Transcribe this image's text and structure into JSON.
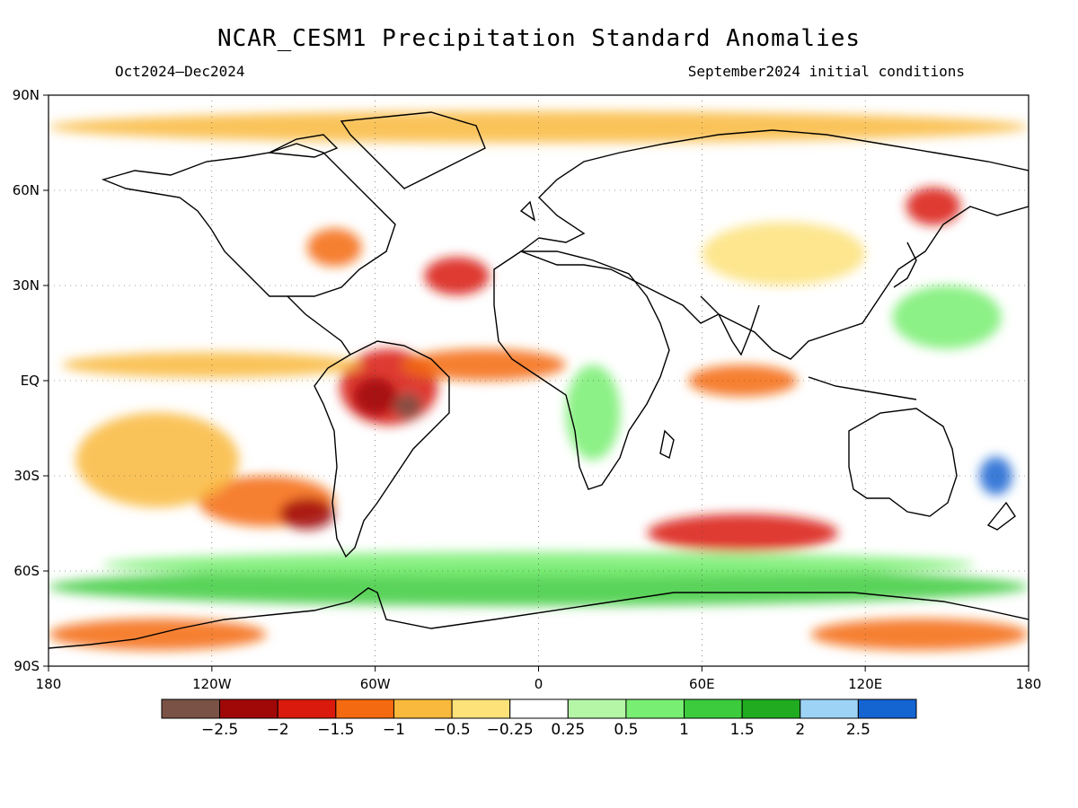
{
  "title": "NCAR_CESM1 Precipitation Standard Anomalies",
  "period": "Oct2024–Dec2024",
  "init": "September2024 initial conditions",
  "lat_ticks": [
    {
      "value": 90,
      "label": "90N"
    },
    {
      "value": 60,
      "label": "60N"
    },
    {
      "value": 30,
      "label": "30N"
    },
    {
      "value": 0,
      "label": "EQ"
    },
    {
      "value": -30,
      "label": "30S"
    },
    {
      "value": -60,
      "label": "60S"
    },
    {
      "value": -90,
      "label": "90S"
    }
  ],
  "lon_ticks": [
    {
      "value": -180,
      "label": "180"
    },
    {
      "value": -120,
      "label": "120W"
    },
    {
      "value": -60,
      "label": "60W"
    },
    {
      "value": 0,
      "label": "0"
    },
    {
      "value": 60,
      "label": "60E"
    },
    {
      "value": 120,
      "label": "120E"
    },
    {
      "value": 180,
      "label": "180"
    }
  ],
  "colorbar": {
    "colors": [
      "#7a5246",
      "#a00808",
      "#d91a0c",
      "#f46a10",
      "#f9b93c",
      "#fde27a",
      "#ffffff",
      "#b4f6a6",
      "#78ee72",
      "#3ccb3c",
      "#20ab20",
      "#9dd4f6",
      "#1464d2"
    ],
    "labels": [
      "−2.5",
      "−2",
      "−1.5",
      "−1",
      "−0.5",
      "−0.25",
      "0.25",
      "0.5",
      "1",
      "1.5",
      "2",
      "2.5"
    ]
  },
  "anomaly_regions": [
    {
      "name": "South America tropics",
      "lon": -55,
      "lat": -2,
      "rx": 18,
      "ry": 12,
      "color": "#d91a0c"
    },
    {
      "name": "Amazon core",
      "lon": -60,
      "lat": -5,
      "rx": 8,
      "ry": 6,
      "color": "#a00808"
    },
    {
      "name": "Amazon core 2",
      "lon": -48,
      "lat": -8,
      "rx": 5,
      "ry": 4,
      "color": "#7a5246"
    },
    {
      "name": "Eastern Atlantic",
      "lon": -20,
      "lat": 5,
      "rx": 30,
      "ry": 5,
      "color": "#f46a10"
    },
    {
      "name": "North Atlantic",
      "lon": -30,
      "lat": 33,
      "rx": 12,
      "ry": 6,
      "color": "#d91a0c"
    },
    {
      "name": "Great Lakes",
      "lon": -75,
      "lat": 42,
      "rx": 10,
      "ry": 6,
      "color": "#f46a10"
    },
    {
      "name": "East Pacific band",
      "lon": -120,
      "lat": 5,
      "rx": 55,
      "ry": 4,
      "color": "#f9b93c"
    },
    {
      "name": "Southeast Pacific",
      "lon": -100,
      "lat": -38,
      "rx": 25,
      "ry": 8,
      "color": "#f46a10"
    },
    {
      "name": "Chile coast",
      "lon": -85,
      "lat": -42,
      "rx": 10,
      "ry": 5,
      "color": "#a00808"
    },
    {
      "name": "South Indian Ocean",
      "lon": 75,
      "lat": -48,
      "rx": 35,
      "ry": 6,
      "color": "#d91a0c"
    },
    {
      "name": "Indian Ocean",
      "lon": 75,
      "lat": 0,
      "rx": 20,
      "ry": 5,
      "color": "#f46a10"
    },
    {
      "name": "Siberia",
      "lon": 145,
      "lat": 55,
      "rx": 10,
      "ry": 6,
      "color": "#d91a0c"
    },
    {
      "name": "Antarctic green belt",
      "lon": 0,
      "lat": -65,
      "rx": 180,
      "ry": 6,
      "color": "#3ccb3c"
    },
    {
      "name": "Southern Ocean belt",
      "lon": 0,
      "lat": -58,
      "rx": 160,
      "ry": 4,
      "color": "#78ee72"
    },
    {
      "name": "Arctic band",
      "lon": 0,
      "lat": 80,
      "rx": 180,
      "ry": 5,
      "color": "#f9b93c"
    },
    {
      "name": "Australia east",
      "lon": 168,
      "lat": -30,
      "rx": 6,
      "ry": 6,
      "color": "#1464d2"
    },
    {
      "name": "Africa",
      "lon": 20,
      "lat": -10,
      "rx": 10,
      "ry": 15,
      "color": "#78ee72"
    },
    {
      "name": "South Pacific",
      "lon": -140,
      "lat": -25,
      "rx": 30,
      "ry": 15,
      "color": "#f9b93c"
    },
    {
      "name": "Antarctica south",
      "lon": -140,
      "lat": -80,
      "rx": 40,
      "ry": 5,
      "color": "#f46a10"
    },
    {
      "name": "Antarctica east",
      "lon": 140,
      "lat": -80,
      "rx": 40,
      "ry": 5,
      "color": "#f46a10"
    },
    {
      "name": "Asia",
      "lon": 90,
      "lat": 40,
      "rx": 30,
      "ry": 10,
      "color": "#fde27a"
    },
    {
      "name": "Western Pacific",
      "lon": 150,
      "lat": 20,
      "rx": 20,
      "ry": 10,
      "color": "#78ee72"
    }
  ]
}
